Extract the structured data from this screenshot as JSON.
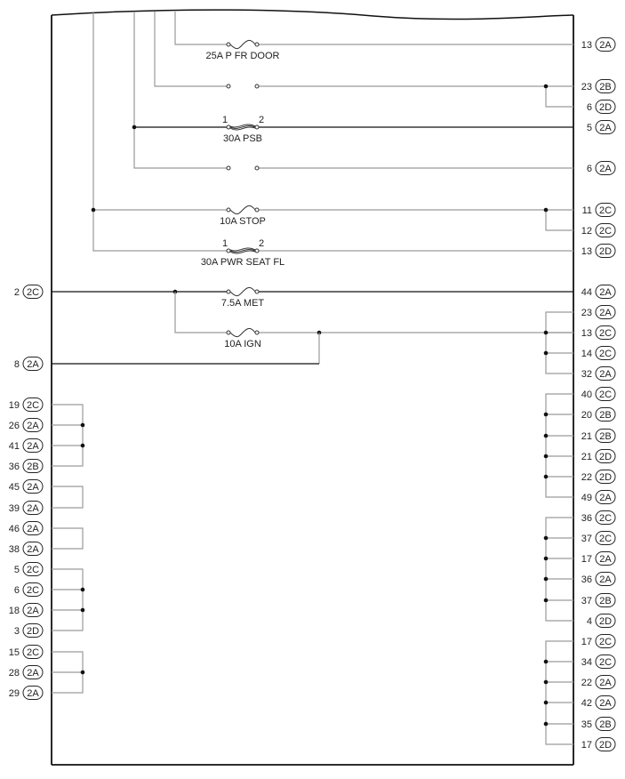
{
  "fuses": [
    {
      "label": "25A P FR DOOR",
      "type": "fuse"
    },
    {
      "label": "",
      "type": "open"
    },
    {
      "label": "30A PSB",
      "type": "fusible-link",
      "pin1": "1",
      "pin2": "2"
    },
    {
      "label": "",
      "type": "open"
    },
    {
      "label": "10A STOP",
      "type": "fuse"
    },
    {
      "label": "30A PWR SEAT FL",
      "type": "fusible-link",
      "pin1": "1",
      "pin2": "2"
    },
    {
      "label": "7.5A MET",
      "type": "fuse"
    },
    {
      "label": "10A IGN",
      "type": "fuse"
    }
  ],
  "right_pins": [
    {
      "pin": "13",
      "conn": "2A"
    },
    {
      "pin": "23",
      "conn": "2B"
    },
    {
      "pin": "6",
      "conn": "2D"
    },
    {
      "pin": "5",
      "conn": "2A"
    },
    {
      "pin": "6",
      "conn": "2A"
    },
    {
      "pin": "11",
      "conn": "2C"
    },
    {
      "pin": "12",
      "conn": "2C"
    },
    {
      "pin": "13",
      "conn": "2D"
    },
    {
      "pin": "44",
      "conn": "2A"
    },
    {
      "pin": "23",
      "conn": "2A"
    },
    {
      "pin": "13",
      "conn": "2C"
    },
    {
      "pin": "14",
      "conn": "2C"
    },
    {
      "pin": "32",
      "conn": "2A"
    },
    {
      "pin": "40",
      "conn": "2C"
    },
    {
      "pin": "20",
      "conn": "2B"
    },
    {
      "pin": "21",
      "conn": "2B"
    },
    {
      "pin": "21",
      "conn": "2D"
    },
    {
      "pin": "22",
      "conn": "2D"
    },
    {
      "pin": "49",
      "conn": "2A"
    },
    {
      "pin": "36",
      "conn": "2C"
    },
    {
      "pin": "37",
      "conn": "2C"
    },
    {
      "pin": "17",
      "conn": "2A"
    },
    {
      "pin": "36",
      "conn": "2A"
    },
    {
      "pin": "37",
      "conn": "2B"
    },
    {
      "pin": "4",
      "conn": "2D"
    },
    {
      "pin": "17",
      "conn": "2C"
    },
    {
      "pin": "34",
      "conn": "2C"
    },
    {
      "pin": "22",
      "conn": "2A"
    },
    {
      "pin": "42",
      "conn": "2A"
    },
    {
      "pin": "35",
      "conn": "2B"
    },
    {
      "pin": "17",
      "conn": "2D"
    }
  ],
  "left_pins": [
    {
      "pin": "2",
      "conn": "2C"
    },
    {
      "pin": "8",
      "conn": "2A"
    },
    {
      "pin": "19",
      "conn": "2C"
    },
    {
      "pin": "26",
      "conn": "2A"
    },
    {
      "pin": "41",
      "conn": "2A"
    },
    {
      "pin": "36",
      "conn": "2B"
    },
    {
      "pin": "45",
      "conn": "2A"
    },
    {
      "pin": "39",
      "conn": "2A"
    },
    {
      "pin": "46",
      "conn": "2A"
    },
    {
      "pin": "38",
      "conn": "2A"
    },
    {
      "pin": "5",
      "conn": "2C"
    },
    {
      "pin": "6",
      "conn": "2C"
    },
    {
      "pin": "18",
      "conn": "2A"
    },
    {
      "pin": "3",
      "conn": "2D"
    },
    {
      "pin": "15",
      "conn": "2C"
    },
    {
      "pin": "28",
      "conn": "2A"
    },
    {
      "pin": "29",
      "conn": "2A"
    }
  ],
  "colors": {
    "wire": "#9a9a9a",
    "wire_dark": "#111111",
    "frame": "#111111"
  }
}
